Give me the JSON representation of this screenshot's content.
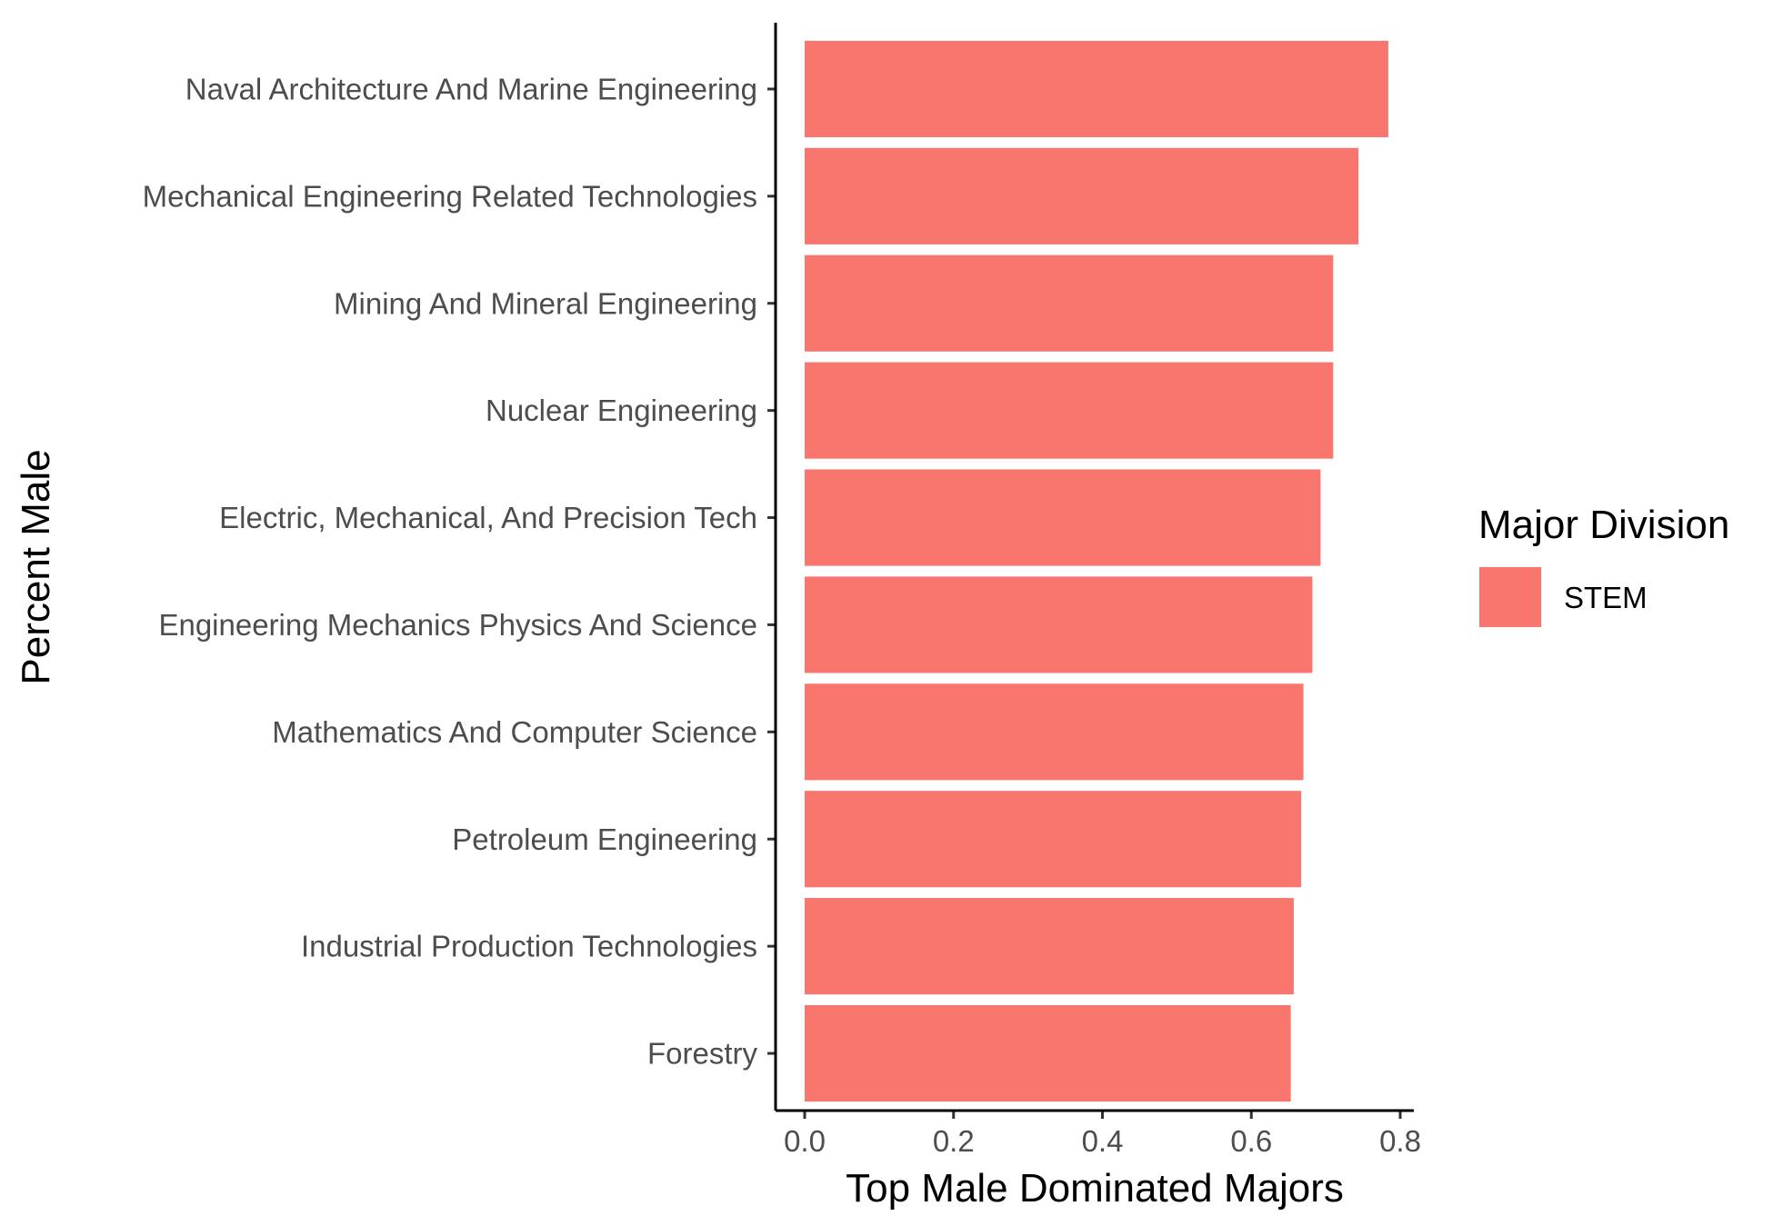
{
  "chart_data": {
    "type": "bar",
    "orientation": "horizontal",
    "xlabel": "Top Male Dominated Majors",
    "ylabel": "Percent Male",
    "xlim": [
      0,
      0.82
    ],
    "x_ticks": [
      "0.0",
      "0.2",
      "0.4",
      "0.6",
      "0.8"
    ],
    "x_tick_values": [
      0,
      0.2,
      0.4,
      0.6,
      0.8
    ],
    "grid": false,
    "categories": [
      "Naval Architecture And Marine Engineering",
      "Mechanical Engineering Related Technologies",
      "Mining And Mineral Engineering",
      "Nuclear Engineering",
      "Electric, Mechanical, And Precision Tech",
      "Engineering Mechanics Physics And Science",
      "Mathematics And Computer Science",
      "Petroleum Engineering",
      "Industrial Production Technologies",
      "Forestry"
    ],
    "values": [
      0.784,
      0.744,
      0.71,
      0.71,
      0.693,
      0.682,
      0.67,
      0.667,
      0.657,
      0.653
    ],
    "bar_color": "#F8766D",
    "legend": {
      "title": "Major Division",
      "position": "right",
      "entries": [
        {
          "label": "STEM",
          "color": "#F8766D"
        }
      ]
    }
  }
}
